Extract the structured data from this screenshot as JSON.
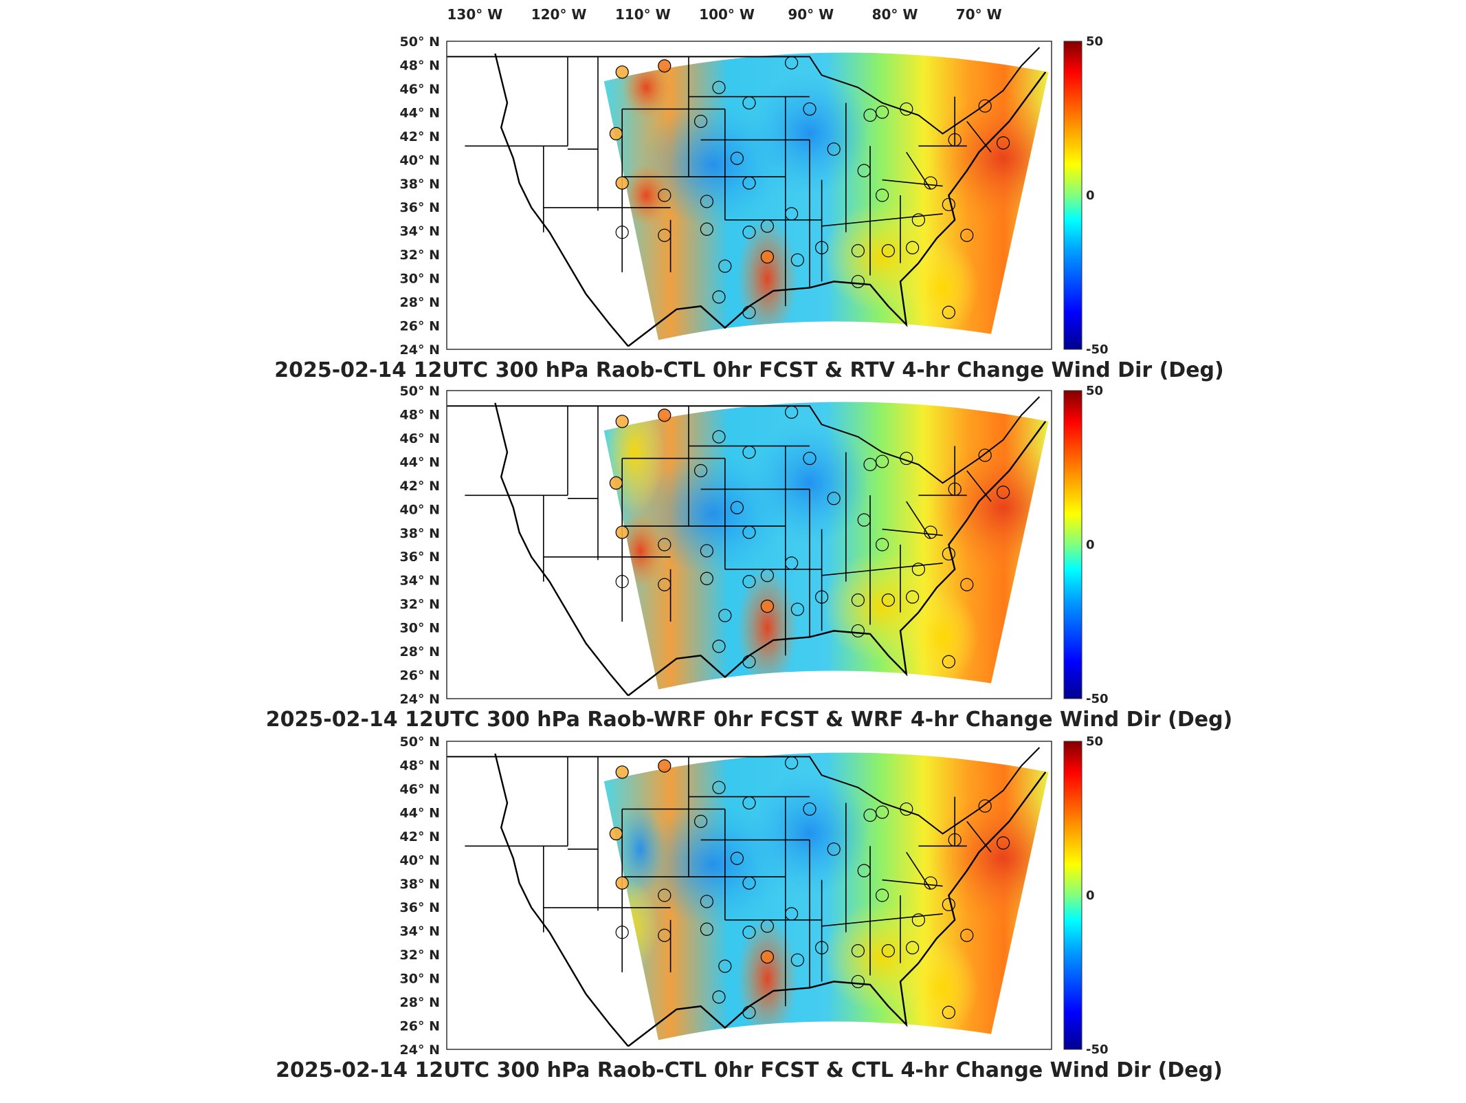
{
  "lon_axis": {
    "labels": [
      "130° W",
      "120° W",
      "110° W",
      "100° W",
      "90° W",
      "80° W",
      "70° W"
    ],
    "values": [
      -130,
      -120,
      -110,
      -100,
      -90,
      -80,
      -70
    ]
  },
  "lat_axis": {
    "labels": [
      "50° N",
      "48° N",
      "46° N",
      "44° N",
      "42° N",
      "40° N",
      "38° N",
      "36° N",
      "34° N",
      "32° N",
      "30° N",
      "28° N",
      "26° N",
      "24° N"
    ],
    "values": [
      50,
      48,
      46,
      44,
      42,
      40,
      38,
      36,
      34,
      32,
      30,
      28,
      26,
      24
    ]
  },
  "colorbar": {
    "tick_labels": [
      "50",
      "0",
      "-50"
    ],
    "range": [
      -50,
      50
    ],
    "colormap": [
      "#00008f",
      "#0000ff",
      "#00a0ff",
      "#00ffff",
      "#80ff80",
      "#ffff00",
      "#ff8000",
      "#ff0000",
      "#800000"
    ]
  },
  "panels": [
    {
      "title": "2025-02-14 12UTC 300 hPa Raob-CTL 0hr FCST & RTV 4-hr Change Wind Dir (Deg)",
      "variant": "rtv"
    },
    {
      "title": "2025-02-14 12UTC 300 hPa Raob-WRF 0hr FCST & WRF 4-hr Change Wind Dir (Deg)",
      "variant": "wrf"
    },
    {
      "title": "2025-02-14 12UTC 300 hPa Raob-CTL 0hr FCST & CTL 4-hr Change Wind Dir (Deg)",
      "variant": "ctl"
    }
  ],
  "colors": {
    "background": "#ffffff",
    "coastline": "#000000",
    "station_marker_stroke": "#000000"
  }
}
